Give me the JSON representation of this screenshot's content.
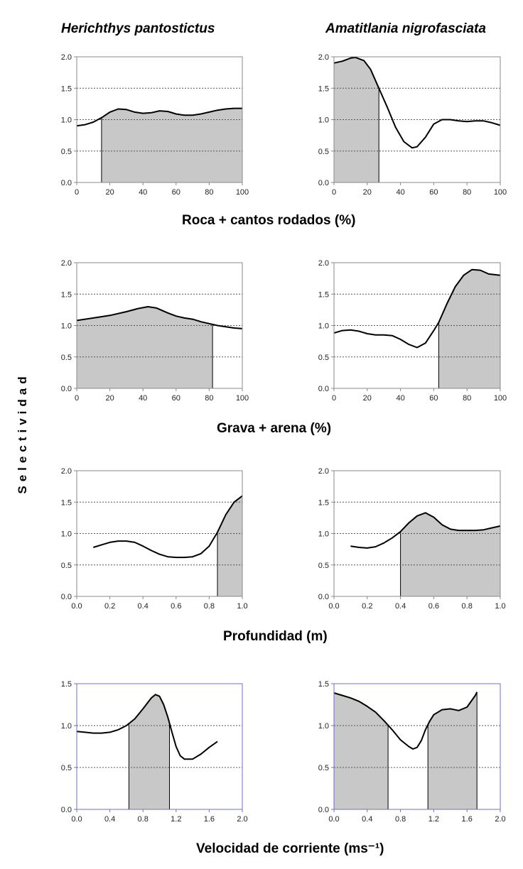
{
  "figure": {
    "ylabel": "Selectividad",
    "species": [
      "Herichthys pantostictus",
      "Amatitlania nigrofasciata"
    ],
    "row_labels": [
      "Roca + cantos rodados (%)",
      "Grava +  arena (%)",
      "Profundidad (m)",
      "Velocidad de corriente (ms⁻¹)"
    ]
  },
  "colors": {
    "fill": "#c8c8c8",
    "line": "#000000",
    "grid": "#555555",
    "frame_default": "#8a8a8a",
    "frame_row4": "#7070c8"
  },
  "chart_data": [
    {
      "id": "roca-herichthys",
      "type": "area",
      "xlim": [
        0,
        100
      ],
      "ylim": [
        0,
        2
      ],
      "xticks": [
        0,
        20,
        40,
        60,
        80,
        100
      ],
      "xtick_labels": [
        "0",
        "20",
        "40",
        "60",
        "80",
        "100"
      ],
      "yticks": [
        0,
        0.5,
        1,
        1.5,
        2
      ],
      "ytick_labels": [
        "0.0",
        "0.5",
        "1.0",
        "1.5",
        "2.0"
      ],
      "grid_y": [
        0.5,
        1,
        1.5
      ],
      "x": [
        0,
        5,
        10,
        15,
        20,
        25,
        30,
        35,
        40,
        45,
        50,
        55,
        60,
        65,
        70,
        75,
        80,
        85,
        90,
        95,
        100
      ],
      "y": [
        0.9,
        0.92,
        0.96,
        1.03,
        1.12,
        1.17,
        1.16,
        1.12,
        1.1,
        1.11,
        1.14,
        1.13,
        1.09,
        1.07,
        1.07,
        1.09,
        1.12,
        1.15,
        1.17,
        1.18,
        1.18
      ],
      "shaded_ranges": [
        [
          15,
          100
        ]
      ]
    },
    {
      "id": "roca-amatitlania",
      "type": "area",
      "xlim": [
        0,
        100
      ],
      "ylim": [
        0,
        2
      ],
      "xticks": [
        0,
        20,
        40,
        60,
        80,
        100
      ],
      "xtick_labels": [
        "0",
        "20",
        "40",
        "60",
        "80",
        "100"
      ],
      "yticks": [
        0,
        0.5,
        1,
        1.5,
        2
      ],
      "ytick_labels": [
        "0.0",
        "0.5",
        "1.0",
        "1.5",
        "2.0"
      ],
      "grid_y": [
        0.5,
        1,
        1.5
      ],
      "x": [
        0,
        5,
        10,
        13,
        18,
        22,
        27,
        32,
        37,
        42,
        47,
        50,
        55,
        60,
        65,
        70,
        75,
        80,
        85,
        90,
        95,
        100
      ],
      "y": [
        1.9,
        1.93,
        1.98,
        1.99,
        1.94,
        1.8,
        1.5,
        1.2,
        0.88,
        0.65,
        0.55,
        0.57,
        0.72,
        0.93,
        1.0,
        1.0,
        0.98,
        0.97,
        0.98,
        0.98,
        0.95,
        0.91
      ],
      "shaded_ranges": [
        [
          0,
          27
        ]
      ]
    },
    {
      "id": "grava-herichthys",
      "type": "area",
      "xlim": [
        0,
        100
      ],
      "ylim": [
        0,
        2
      ],
      "xticks": [
        0,
        20,
        40,
        60,
        80,
        100
      ],
      "xtick_labels": [
        "0",
        "20",
        "40",
        "60",
        "80",
        "100"
      ],
      "yticks": [
        0,
        0.5,
        1,
        1.5,
        2
      ],
      "ytick_labels": [
        "0.0",
        "0.5",
        "1.0",
        "1.5",
        "2.0"
      ],
      "grid_y": [
        0.5,
        1,
        1.5
      ],
      "x": [
        0,
        10,
        20,
        30,
        37,
        43,
        48,
        55,
        60,
        65,
        70,
        75,
        80,
        85,
        90,
        95,
        100
      ],
      "y": [
        1.08,
        1.12,
        1.16,
        1.22,
        1.27,
        1.3,
        1.28,
        1.2,
        1.15,
        1.12,
        1.1,
        1.06,
        1.03,
        1.0,
        0.98,
        0.96,
        0.95
      ],
      "shaded_ranges": [
        [
          0,
          82
        ]
      ]
    },
    {
      "id": "grava-amatitlania",
      "type": "area",
      "xlim": [
        0,
        100
      ],
      "ylim": [
        0,
        2
      ],
      "xticks": [
        0,
        20,
        40,
        60,
        80,
        100
      ],
      "xtick_labels": [
        "0",
        "20",
        "40",
        "60",
        "80",
        "100"
      ],
      "yticks": [
        0,
        0.5,
        1,
        1.5,
        2
      ],
      "ytick_labels": [
        "0.0",
        "0.5",
        "1.0",
        "1.5",
        "2.0"
      ],
      "grid_y": [
        0.5,
        1,
        1.5
      ],
      "x": [
        0,
        5,
        10,
        15,
        20,
        25,
        30,
        35,
        40,
        45,
        50,
        55,
        60,
        63,
        68,
        73,
        78,
        83,
        88,
        93,
        100
      ],
      "y": [
        0.88,
        0.92,
        0.93,
        0.91,
        0.87,
        0.85,
        0.85,
        0.84,
        0.78,
        0.7,
        0.65,
        0.72,
        0.92,
        1.05,
        1.35,
        1.62,
        1.8,
        1.89,
        1.88,
        1.82,
        1.8
      ],
      "shaded_ranges": [
        [
          63,
          100
        ]
      ]
    },
    {
      "id": "profundidad-herichthys",
      "type": "area",
      "xlim": [
        0,
        1
      ],
      "ylim": [
        0,
        2
      ],
      "xticks": [
        0,
        0.2,
        0.4,
        0.6,
        0.8,
        1.0
      ],
      "xtick_labels": [
        "0.0",
        "0.2",
        "0.4",
        "0.6",
        "0.8",
        "1.0"
      ],
      "yticks": [
        0,
        0.5,
        1,
        1.5,
        2
      ],
      "ytick_labels": [
        "0.0",
        "0.5",
        "1.0",
        "1.5",
        "2.0"
      ],
      "grid_y": [
        0.5,
        1,
        1.5
      ],
      "x": [
        0.1,
        0.15,
        0.2,
        0.25,
        0.3,
        0.35,
        0.4,
        0.45,
        0.5,
        0.55,
        0.6,
        0.65,
        0.7,
        0.75,
        0.8,
        0.85,
        0.9,
        0.95,
        1.0
      ],
      "y": [
        0.78,
        0.82,
        0.86,
        0.88,
        0.88,
        0.86,
        0.8,
        0.73,
        0.67,
        0.63,
        0.62,
        0.62,
        0.63,
        0.68,
        0.8,
        1.02,
        1.3,
        1.5,
        1.6
      ],
      "shaded_ranges": [
        [
          0.85,
          1.0
        ]
      ]
    },
    {
      "id": "profundidad-amatitlania",
      "type": "area",
      "xlim": [
        0,
        1
      ],
      "ylim": [
        0,
        2
      ],
      "xticks": [
        0,
        0.2,
        0.4,
        0.6,
        0.8,
        1.0
      ],
      "xtick_labels": [
        "0.0",
        "0.2",
        "0.4",
        "0.6",
        "0.8",
        "1.0"
      ],
      "yticks": [
        0,
        0.5,
        1,
        1.5,
        2
      ],
      "ytick_labels": [
        "0.0",
        "0.5",
        "1.0",
        "1.5",
        "2.0"
      ],
      "grid_y": [
        0.5,
        1,
        1.5
      ],
      "x": [
        0.1,
        0.15,
        0.2,
        0.25,
        0.3,
        0.35,
        0.4,
        0.45,
        0.5,
        0.55,
        0.6,
        0.65,
        0.7,
        0.75,
        0.8,
        0.85,
        0.9,
        0.95,
        1.0
      ],
      "y": [
        0.8,
        0.78,
        0.77,
        0.79,
        0.85,
        0.93,
        1.03,
        1.17,
        1.28,
        1.33,
        1.26,
        1.14,
        1.07,
        1.05,
        1.05,
        1.05,
        1.06,
        1.09,
        1.12
      ],
      "shaded_ranges": [
        [
          0.4,
          1.0
        ]
      ]
    },
    {
      "id": "velocidad-herichthys",
      "type": "area",
      "xlim": [
        0,
        2
      ],
      "ylim": [
        0,
        1.5
      ],
      "xticks": [
        0,
        0.4,
        0.8,
        1.2,
        1.6,
        2.0
      ],
      "xtick_labels": [
        "0.0",
        "0.4",
        "0.8",
        "1.2",
        "1.6",
        "2.0"
      ],
      "yticks": [
        0,
        0.5,
        1,
        1.5
      ],
      "ytick_labels": [
        "0.0",
        "0.5",
        "1.0",
        "1.5"
      ],
      "grid_y": [
        0.5,
        1
      ],
      "x": [
        0,
        0.1,
        0.2,
        0.3,
        0.4,
        0.5,
        0.6,
        0.7,
        0.8,
        0.9,
        0.95,
        1.0,
        1.05,
        1.1,
        1.15,
        1.2,
        1.25,
        1.3,
        1.4,
        1.5,
        1.6,
        1.7
      ],
      "y": [
        0.93,
        0.92,
        0.91,
        0.91,
        0.92,
        0.95,
        1.0,
        1.08,
        1.2,
        1.33,
        1.37,
        1.35,
        1.25,
        1.1,
        0.92,
        0.75,
        0.64,
        0.6,
        0.6,
        0.66,
        0.74,
        0.81
      ],
      "shaded_ranges": [
        [
          0.63,
          1.12
        ]
      ]
    },
    {
      "id": "velocidad-amatitlania",
      "type": "area",
      "xlim": [
        0,
        2
      ],
      "ylim": [
        0,
        1.5
      ],
      "xticks": [
        0,
        0.4,
        0.8,
        1.2,
        1.6,
        2.0
      ],
      "xtick_labels": [
        "0.0",
        "0.4",
        "0.8",
        "1.2",
        "1.6",
        "2.0"
      ],
      "yticks": [
        0,
        0.5,
        1,
        1.5
      ],
      "ytick_labels": [
        "0.0",
        "0.5",
        "1.0",
        "1.5"
      ],
      "grid_y": [
        0.5,
        1
      ],
      "x": [
        0,
        0.1,
        0.2,
        0.3,
        0.4,
        0.5,
        0.6,
        0.7,
        0.8,
        0.9,
        0.95,
        1.0,
        1.05,
        1.1,
        1.15,
        1.2,
        1.3,
        1.4,
        1.5,
        1.6,
        1.7,
        1.72
      ],
      "y": [
        1.39,
        1.36,
        1.33,
        1.29,
        1.23,
        1.16,
        1.06,
        0.95,
        0.83,
        0.75,
        0.72,
        0.74,
        0.82,
        0.95,
        1.05,
        1.13,
        1.19,
        1.2,
        1.18,
        1.22,
        1.36,
        1.4
      ],
      "shaded_ranges": [
        [
          0,
          0.65
        ],
        [
          1.13,
          1.72
        ]
      ]
    }
  ]
}
